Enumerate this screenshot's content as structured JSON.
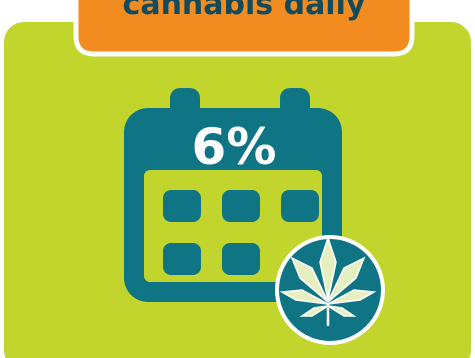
{
  "header": {
    "title": "cannabis daily"
  },
  "stat": {
    "value": "6%"
  }
}
